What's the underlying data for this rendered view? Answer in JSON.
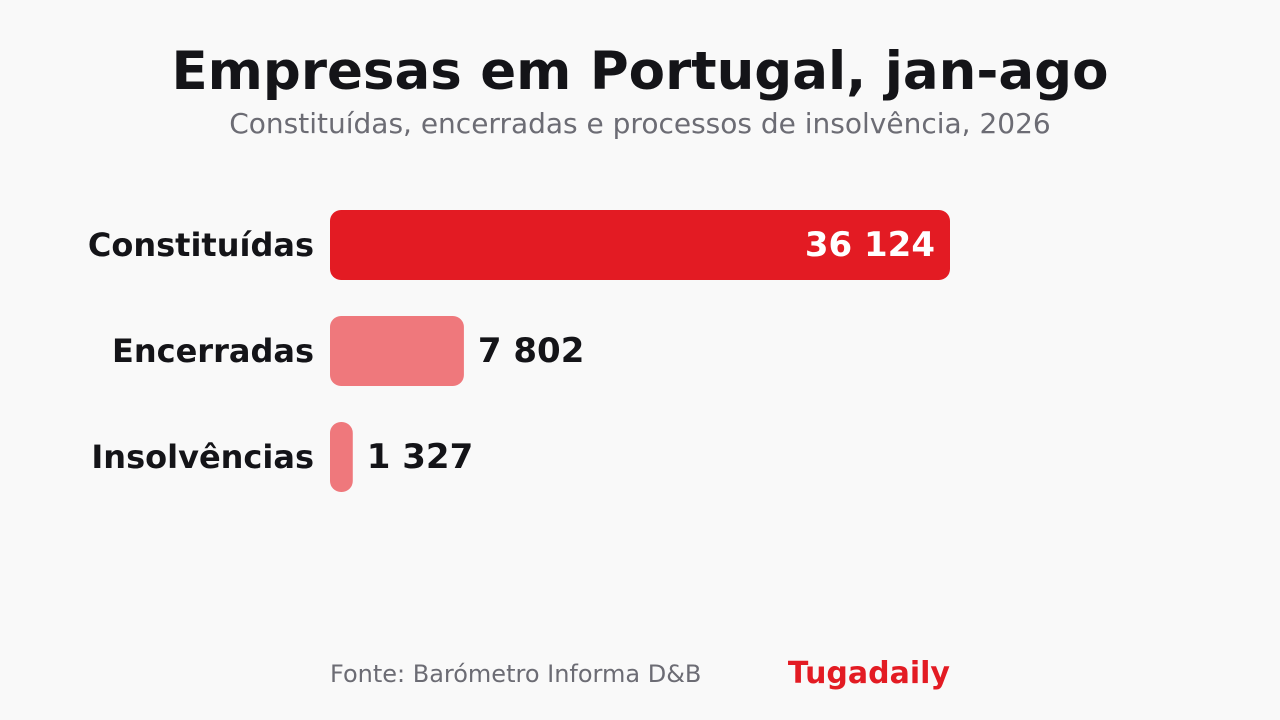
{
  "chart_data": {
    "type": "bar",
    "orientation": "horizontal",
    "title": "Empresas em Portugal, jan-ago",
    "subtitle": "Constituídas, encerradas e processos de insolvência, 2026",
    "categories": [
      "Constituídas",
      "Encerradas",
      "Insolvências"
    ],
    "values": [
      36124,
      7802,
      1327
    ],
    "value_labels": [
      "36 124",
      "7 802",
      "1 327"
    ],
    "xlim": [
      0,
      36124
    ],
    "grid": false,
    "colors": {
      "primary": "#e31b23",
      "secondary": "#ef787c",
      "label_inside": "#ffffff",
      "label_outside": "#141418"
    }
  },
  "footer": {
    "source": "Fonte: Barómetro Informa D&B",
    "brand": "Tugadaily"
  }
}
